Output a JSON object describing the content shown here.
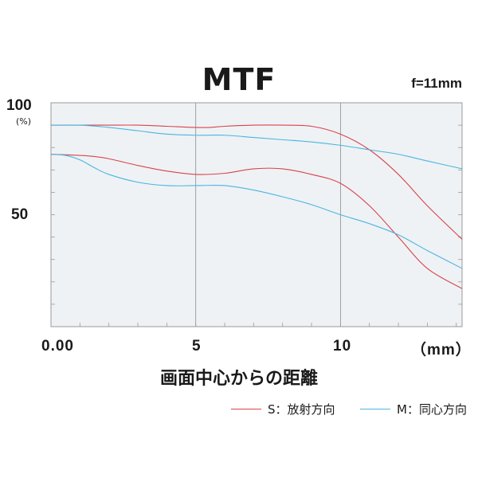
{
  "chart_data": {
    "type": "line",
    "title": "MTF",
    "subtitle": "f=11mm",
    "xlabel": "画面中心からの距離",
    "x_unit_label": "（mm）",
    "ylabel_unit": "(%)",
    "xlim": [
      0,
      14.2
    ],
    "ylim": [
      0,
      100
    ],
    "x_tick_labels": [
      {
        "value": 0,
        "label": "0.00"
      },
      {
        "value": 5,
        "label": "5"
      },
      {
        "value": 10,
        "label": "10"
      }
    ],
    "y_tick_labels": [
      {
        "value": 100,
        "label": "100"
      },
      {
        "value": 50,
        "label": "50"
      }
    ],
    "grid": "vertical lines at 0, 5, 10",
    "legend_placement": "bottom-right",
    "series": [
      {
        "name": "S：放射方向",
        "color": "#d9434b",
        "x": [
          0,
          1,
          2,
          3,
          4,
          5,
          5.5,
          6,
          7,
          8,
          9,
          10,
          11,
          12,
          13,
          14.2
        ],
        "y": [
          90,
          90,
          90,
          90,
          89.5,
          89,
          89,
          89.5,
          90,
          90,
          89.5,
          86,
          79,
          68,
          54,
          39
        ]
      },
      {
        "name": "S：放射方向",
        "color": "#d9434b",
        "x": [
          0,
          1,
          1.5,
          2,
          3,
          4,
          5,
          6,
          7,
          8,
          9,
          10,
          11,
          12,
          13,
          14.2
        ],
        "y": [
          77,
          76.5,
          76,
          75,
          72,
          69.5,
          68,
          68.5,
          70.5,
          70.5,
          68,
          64,
          54,
          40,
          26,
          17
        ]
      },
      {
        "name": "M：同心方向",
        "color": "#4cb4e0",
        "x": [
          0,
          1,
          2,
          3,
          4,
          5,
          6,
          7,
          8,
          9,
          10,
          11,
          12,
          13,
          14.2
        ],
        "y": [
          90,
          90,
          89,
          87.5,
          86,
          85.5,
          85.5,
          84.5,
          83.5,
          82.5,
          81,
          79,
          77,
          74,
          70.5
        ]
      },
      {
        "name": "M：同心方向",
        "color": "#4cb4e0",
        "x": [
          0,
          0.5,
          1,
          1.5,
          2,
          3,
          4,
          5,
          6,
          7,
          8,
          9,
          10,
          11,
          12,
          13,
          14.2
        ],
        "y": [
          77,
          76.5,
          74.5,
          71,
          68,
          64.5,
          63,
          63,
          63,
          61,
          58,
          54.5,
          50,
          46,
          41,
          34,
          26
        ]
      }
    ]
  },
  "legend": {
    "s_label": "S：放射方向",
    "m_label": "M：同心方向"
  }
}
